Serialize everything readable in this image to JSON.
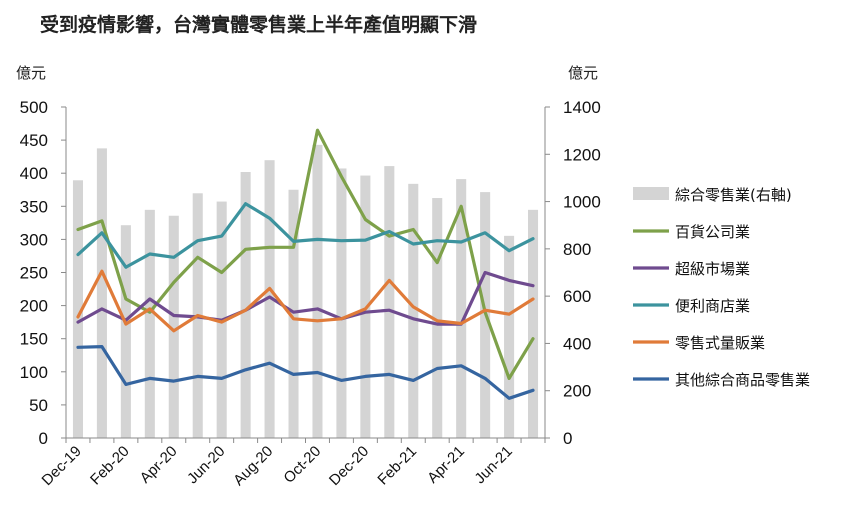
{
  "chart_data": {
    "type": "bar+line",
    "title": "受到疫情影響，台灣實體零售業上半年產值明顯下滑",
    "left_axis": {
      "unit_label": "億元",
      "range": [
        0,
        500
      ],
      "ticks": [
        "0",
        "50",
        "100",
        "150",
        "200",
        "250",
        "300",
        "350",
        "400",
        "450",
        "500"
      ]
    },
    "right_axis": {
      "unit_label": "億元",
      "range": [
        0,
        1400
      ],
      "ticks": [
        "0",
        "200",
        "400",
        "600",
        "800",
        "1000",
        "1200",
        "1400"
      ]
    },
    "categories": [
      "Dec-19",
      "Jan-20",
      "Feb-20",
      "Mar-20",
      "Apr-20",
      "May-20",
      "Jun-20",
      "Jul-20",
      "Aug-20",
      "Sep-20",
      "Oct-20",
      "Nov-20",
      "Dec-20",
      "Jan-21",
      "Feb-21",
      "Mar-21",
      "Apr-21",
      "May-21",
      "Jun-21",
      "Jul-21"
    ],
    "x_tick_labels": [
      "Dec-19",
      "",
      "Feb-20",
      "",
      "Apr-20",
      "",
      "Jun-20",
      "",
      "Aug-20",
      "",
      "Oct-20",
      "",
      "Dec-20",
      "",
      "Feb-21",
      "",
      "Apr-21",
      "",
      "Jun-21",
      ""
    ],
    "bar_series": {
      "name": "綜合零售業(右軸)",
      "axis": "right",
      "color": "#d4d4d4",
      "values": [
        1090,
        1225,
        900,
        965,
        940,
        1035,
        1000,
        1125,
        1175,
        1050,
        1240,
        1140,
        1110,
        1150,
        1075,
        1015,
        1095,
        1040,
        855,
        965
      ]
    },
    "line_series": [
      {
        "name": "百貨公司業",
        "axis": "left",
        "color": "#7ea14a",
        "values": [
          315,
          328,
          210,
          190,
          235,
          273,
          250,
          285,
          288,
          288,
          465,
          395,
          330,
          305,
          315,
          265,
          350,
          190,
          90,
          150
        ]
      },
      {
        "name": "超級市場業",
        "axis": "left",
        "color": "#6f4b8f",
        "values": [
          175,
          195,
          178,
          210,
          185,
          183,
          178,
          193,
          213,
          190,
          195,
          180,
          190,
          193,
          180,
          172,
          172,
          250,
          238,
          230
        ]
      },
      {
        "name": "便利商店業",
        "axis": "left",
        "color": "#3c939e",
        "values": [
          277,
          310,
          258,
          278,
          273,
          298,
          305,
          354,
          332,
          297,
          300,
          298,
          299,
          312,
          293,
          298,
          296,
          310,
          283,
          301
        ]
      },
      {
        "name": "零售式量販業",
        "axis": "left",
        "color": "#e07b39",
        "values": [
          183,
          252,
          172,
          195,
          162,
          185,
          175,
          193,
          226,
          180,
          177,
          180,
          195,
          238,
          198,
          177,
          173,
          193,
          187,
          210
        ]
      },
      {
        "name": "其他綜合商品零售業",
        "axis": "left",
        "color": "#3565a0",
        "values": [
          137,
          138,
          81,
          90,
          86,
          93,
          90,
          103,
          113,
          96,
          99,
          87,
          93,
          96,
          87,
          105,
          109,
          90,
          60,
          72
        ]
      }
    ],
    "legend_placement": "right",
    "grid": false
  }
}
